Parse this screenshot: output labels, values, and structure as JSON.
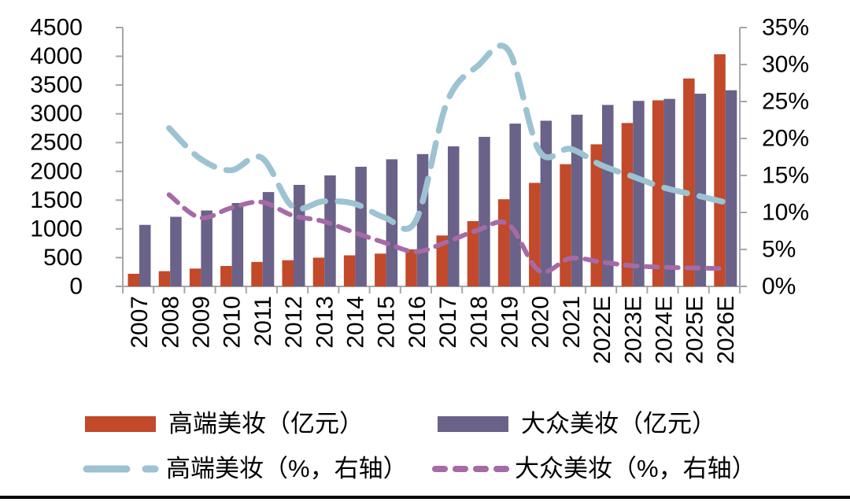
{
  "page": {
    "background_color": "#FFFFFF",
    "footer_rule_color": "#000000"
  },
  "chart_data": {
    "type": "bar",
    "subtype": "combo bar + dashed smoothed lines, dual axis",
    "categories": [
      "2007",
      "2008",
      "2009",
      "2010",
      "2011",
      "2012",
      "2013",
      "2014",
      "2015",
      "2016",
      "2017",
      "2018",
      "2019",
      "2020",
      "2021",
      "2022E",
      "2023E",
      "2024E",
      "2025E",
      "2026E"
    ],
    "left_axis": {
      "min": 0,
      "max": 4500,
      "step": 500,
      "tick_labels": [
        "4500",
        "4000",
        "3500",
        "3000",
        "2500",
        "2000",
        "1500",
        "1000",
        "500",
        "0"
      ]
    },
    "right_axis": {
      "min_pct": 0,
      "max_pct": 35,
      "step_pct": 5,
      "tick_labels": [
        "35%",
        "30%",
        "25%",
        "20%",
        "15%",
        "10%",
        "5%",
        "0%"
      ]
    },
    "axis_color": "#A6A6A6",
    "tick_label_color": "#000000",
    "legend_position": "bottom",
    "grid": "off",
    "series": [
      {
        "id": "premium_bar",
        "name": "高端美妆（亿元）",
        "type": "bar",
        "axis": "left",
        "color": "#C2492A",
        "values": [
          220,
          265,
          310,
          355,
          425,
          455,
          500,
          540,
          570,
          645,
          885,
          1135,
          1515,
          1800,
          2125,
          2470,
          2840,
          3235,
          3615,
          4035
        ]
      },
      {
        "id": "mass_bar",
        "name": "大众美妆（亿元）",
        "type": "bar",
        "axis": "left",
        "color": "#6A6288",
        "values": [
          1070,
          1210,
          1320,
          1450,
          1640,
          1765,
          1930,
          2080,
          2210,
          2300,
          2435,
          2600,
          2830,
          2880,
          2985,
          3155,
          3225,
          3260,
          3350,
          3410
        ]
      },
      {
        "id": "premium_growth",
        "name": "高端美妆（%，右轴）",
        "type": "dashed-line",
        "axis": "right",
        "color": "#9DC3D3",
        "values_pct": [
          null,
          21.4,
          17.3,
          15.7,
          17.4,
          10.8,
          11.5,
          11.2,
          9.3,
          8.9,
          24.8,
          29.8,
          31.9,
          18.3,
          18.6,
          16.4,
          14.9,
          13.4,
          12.4,
          11.4
        ]
      },
      {
        "id": "mass_growth",
        "name": "大众美妆（%，右轴）",
        "type": "dashed-line",
        "axis": "right",
        "color": "#A66AA6",
        "values_pct": [
          null,
          12.4,
          9.3,
          10.6,
          11.4,
          9.6,
          8.8,
          7.3,
          5.9,
          4.7,
          6.0,
          7.6,
          8.4,
          2.1,
          3.8,
          3.3,
          2.8,
          2.6,
          2.5,
          2.4
        ]
      }
    ]
  }
}
